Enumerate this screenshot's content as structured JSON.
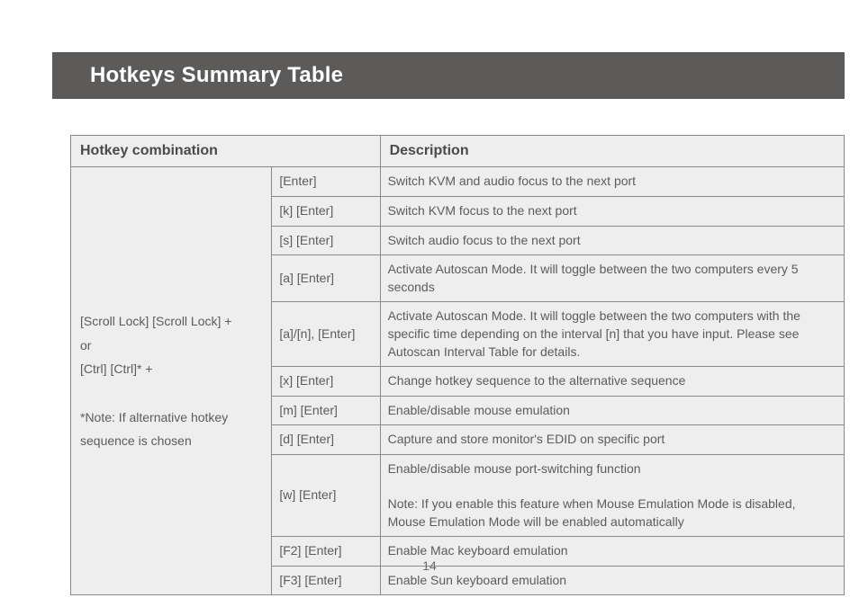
{
  "header": {
    "title": "Hotkeys Summary Table"
  },
  "page_number": "14",
  "table": {
    "columns": {
      "hotkey": "Hotkey combination",
      "description": "Description"
    },
    "prefix_lines": [
      "[Scroll Lock] [Scroll Lock] +",
      "or",
      "[Ctrl] [Ctrl]* +",
      "",
      "*Note: If alternative hotkey sequence is chosen"
    ],
    "rows": [
      {
        "key": "[Enter]",
        "desc": "Switch KVM and audio focus to the next port"
      },
      {
        "key": "[k] [Enter]",
        "desc": "Switch KVM focus to the next port"
      },
      {
        "key": "[s] [Enter]",
        "desc": "Switch audio focus to the next port"
      },
      {
        "key": "[a] [Enter]",
        "desc": "Activate Autoscan Mode. It will toggle between the two computers every 5 seconds"
      },
      {
        "key": "[a]/[n], [Enter]",
        "desc": "Activate Autoscan Mode. It will toggle between the two computers with the specific time depending on the interval [n] that you have input. Please see Autoscan Interval Table for details."
      },
      {
        "key": "[x] [Enter]",
        "desc": "Change hotkey sequence to the alternative sequence"
      },
      {
        "key": "[m] [Enter]",
        "desc": "Enable/disable mouse emulation"
      },
      {
        "key": "[d] [Enter]",
        "desc": "Capture and store monitor's EDID on specific port"
      },
      {
        "key": "[w] [Enter]",
        "desc": "Enable/disable mouse port-switching function\n\nNote: If you enable this feature when Mouse Emulation Mode is disabled, Mouse Emulation Mode will be enabled automatically"
      },
      {
        "key": "[F2] [Enter]",
        "desc": "Enable Mac keyboard emulation"
      },
      {
        "key": "[F3] [Enter]",
        "desc": "Enable Sun keyboard emulation"
      }
    ]
  },
  "style": {
    "header_bg": "#5c5b5a",
    "header_text": "#ffffff",
    "cell_bg": "#eeeeee",
    "border_color": "#8a8a8a",
    "text_color": "#5c5c5c"
  }
}
